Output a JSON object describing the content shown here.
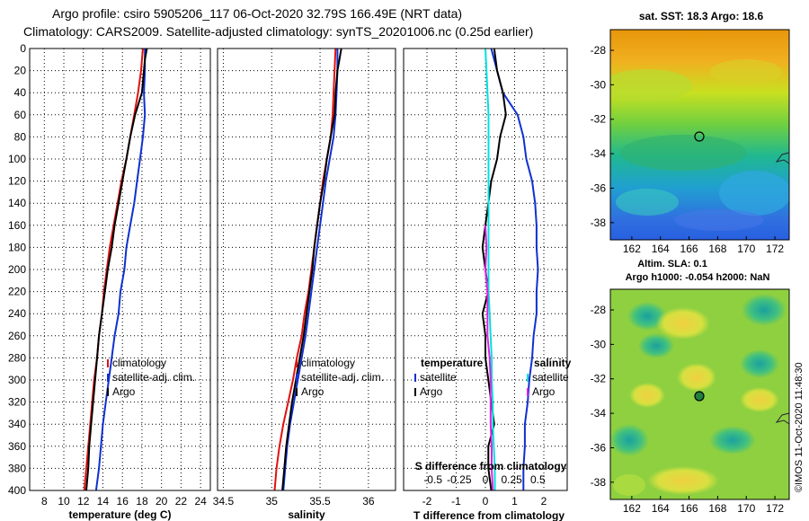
{
  "header": {
    "line1": "Argo profile: csiro 5905206_117 06-Oct-2020 32.79S 166.49E (NRT data)",
    "line2": "Climatology: CARS2009. Satellite-adjusted climatology: synTS_20201006.nc (0.25d earlier)"
  },
  "colors": {
    "climatology": "#e01010",
    "satellite": "#1030d0",
    "argo": "#000000",
    "magenta": "#e020e0",
    "cyan": "#00e0e0"
  },
  "chart_data": [
    {
      "type": "line",
      "id": "temperature",
      "xlabel": "temperature (deg C)",
      "ylabel": "",
      "xlim": [
        6.5,
        25
      ],
      "ylim": [
        400,
        0
      ],
      "xticks": [
        "8",
        "10",
        "12",
        "14",
        "16",
        "18",
        "20",
        "22",
        "24"
      ],
      "xtick_values": [
        8,
        10,
        12,
        14,
        16,
        18,
        20,
        22,
        24
      ],
      "yticks": [
        "0",
        "20",
        "40",
        "60",
        "80",
        "100",
        "120",
        "140",
        "160",
        "180",
        "200",
        "220",
        "240",
        "260",
        "280",
        "300",
        "320",
        "340",
        "360",
        "380",
        "400"
      ],
      "grid": true,
      "legend": [
        "climatology",
        "satellite-adj. clim.",
        "Argo"
      ],
      "series": [
        {
          "name": "climatology",
          "color": "#e01010",
          "depth": [
            0,
            20,
            40,
            60,
            80,
            100,
            120,
            140,
            160,
            180,
            200,
            220,
            240,
            260,
            280,
            300,
            320,
            340,
            360,
            380,
            400
          ],
          "values": [
            18.1,
            17.9,
            17.6,
            17.2,
            16.8,
            16.4,
            15.9,
            15.5,
            15.1,
            14.7,
            14.4,
            14.1,
            13.9,
            13.6,
            13.4,
            13.1,
            12.9,
            12.7,
            12.5,
            12.3,
            12.1
          ]
        },
        {
          "name": "satellite-adj. clim.",
          "color": "#1030d0",
          "depth": [
            0,
            20,
            40,
            60,
            80,
            100,
            120,
            140,
            160,
            180,
            200,
            220,
            240,
            260,
            280,
            300,
            320,
            340,
            360,
            380,
            400
          ],
          "values": [
            18.3,
            18.3,
            18.2,
            18.3,
            18.1,
            17.8,
            17.5,
            17.2,
            16.8,
            16.4,
            16.2,
            15.8,
            15.6,
            15.2,
            14.9,
            14.6,
            14.3,
            14.0,
            13.8,
            13.6,
            13.3
          ]
        },
        {
          "name": "Argo",
          "color": "#000000",
          "depth": [
            0,
            10,
            20,
            40,
            60,
            80,
            100,
            120,
            140,
            160,
            180,
            200,
            220,
            240,
            260,
            280,
            300,
            320,
            340,
            360,
            380,
            400
          ],
          "values": [
            18.5,
            18.3,
            18.2,
            18.0,
            17.3,
            16.8,
            16.4,
            16.0,
            15.6,
            15.2,
            14.9,
            14.5,
            14.2,
            13.9,
            13.6,
            13.4,
            13.2,
            13.0,
            12.8,
            12.6,
            12.5,
            12.3
          ]
        }
      ]
    },
    {
      "type": "line",
      "id": "salinity",
      "xlabel": "salinity",
      "xlim": [
        34.44,
        36.28
      ],
      "ylim": [
        400,
        0
      ],
      "xticks": [
        "34.5",
        "35",
        "35.5",
        "36"
      ],
      "xtick_values": [
        34.5,
        35,
        35.5,
        36
      ],
      "grid": true,
      "legend": [
        "climatology",
        "satellite-adj. clim.",
        "Argo"
      ],
      "series": [
        {
          "name": "climatology",
          "color": "#e01010",
          "depth": [
            0,
            20,
            40,
            60,
            80,
            100,
            120,
            140,
            160,
            180,
            200,
            220,
            240,
            260,
            280,
            300,
            320,
            340,
            360,
            380,
            400
          ],
          "values": [
            35.66,
            35.65,
            35.64,
            35.63,
            35.61,
            35.57,
            35.53,
            35.5,
            35.47,
            35.44,
            35.41,
            35.38,
            35.34,
            35.31,
            35.26,
            35.22,
            35.17,
            35.12,
            35.08,
            35.05,
            35.03
          ]
        },
        {
          "name": "satellite-adj. clim.",
          "color": "#1030d0",
          "depth": [
            0,
            20,
            40,
            60,
            80,
            100,
            120,
            140,
            160,
            180,
            200,
            220,
            240,
            260,
            280,
            300,
            320,
            340,
            360,
            380,
            400
          ],
          "values": [
            35.68,
            35.68,
            35.67,
            35.66,
            35.64,
            35.6,
            35.56,
            35.53,
            35.5,
            35.47,
            35.44,
            35.41,
            35.38,
            35.35,
            35.31,
            35.27,
            35.23,
            35.19,
            35.16,
            35.14,
            35.12
          ]
        },
        {
          "name": "Argo",
          "color": "#000000",
          "depth": [
            0,
            10,
            20,
            40,
            60,
            80,
            100,
            120,
            140,
            160,
            180,
            200,
            220,
            240,
            260,
            280,
            300,
            320,
            340,
            360,
            380,
            400
          ],
          "values": [
            35.72,
            35.7,
            35.68,
            35.66,
            35.65,
            35.61,
            35.57,
            35.54,
            35.5,
            35.47,
            35.44,
            35.42,
            35.39,
            35.36,
            35.33,
            35.29,
            35.25,
            35.21,
            35.18,
            35.15,
            35.13,
            35.11
          ]
        }
      ]
    },
    {
      "type": "line",
      "id": "difference",
      "xlabel": "T difference from climatology",
      "top_label": "S difference from climatology",
      "xlim": [
        -2.8,
        2.8
      ],
      "ylim": [
        400,
        0
      ],
      "xticks": [
        "-2",
        "-1",
        "0",
        "1",
        "2"
      ],
      "xtick_values": [
        -2,
        -1,
        0,
        1,
        2
      ],
      "top_ticks": [
        "-0.5",
        "-0.25",
        "0",
        "0.25",
        "0.5"
      ],
      "top_tick_values": [
        -0.5,
        -0.25,
        0,
        0.25,
        0.5
      ],
      "grid": true,
      "legend_headers": [
        "temperature",
        "salinity"
      ],
      "legend_t": [
        "satellite",
        "Argo"
      ],
      "legend_s": [
        "satellite",
        "Argo"
      ],
      "series": [
        {
          "name": "T satellite",
          "color": "#1030d0",
          "depth": [
            0,
            20,
            40,
            60,
            80,
            100,
            120,
            140,
            160,
            180,
            200,
            220,
            240,
            260,
            280,
            300,
            320,
            340,
            360,
            380,
            400
          ],
          "values": [
            0.2,
            0.4,
            0.6,
            1.1,
            1.3,
            1.4,
            1.6,
            1.7,
            1.75,
            1.75,
            1.8,
            1.75,
            1.75,
            1.65,
            1.6,
            1.5,
            1.45,
            1.35,
            1.35,
            1.3,
            1.3
          ]
        },
        {
          "name": "T Argo",
          "color": "#000000",
          "depth": [
            0,
            20,
            40,
            60,
            80,
            100,
            120,
            140,
            160,
            180,
            200,
            220,
            240,
            260,
            280,
            300,
            320,
            340,
            360,
            380,
            400
          ],
          "values": [
            0.3,
            0.4,
            0.6,
            0.7,
            0.5,
            0.4,
            0.2,
            0.1,
            0.0,
            -0.1,
            0.0,
            0.1,
            -0.1,
            0.0,
            0.0,
            0.1,
            0.2,
            0.3,
            0.1,
            0.1,
            0.2
          ]
        },
        {
          "name": "S satellite",
          "color": "#00e0e0",
          "depth": [
            0,
            20,
            40,
            60,
            80,
            100,
            120,
            140,
            160,
            180,
            200,
            220,
            240,
            260,
            280,
            300,
            320,
            340,
            360,
            380,
            400
          ],
          "values": [
            0.0,
            0.01,
            0.02,
            0.03,
            0.03,
            0.03,
            0.03,
            0.03,
            0.03,
            0.03,
            0.03,
            0.03,
            0.04,
            0.05,
            0.06,
            0.06,
            0.07,
            0.07,
            0.08,
            0.09,
            0.09
          ]
        },
        {
          "name": "S Argo",
          "color": "#e020e0",
          "depth": [
            160,
            180,
            200,
            220,
            240,
            260,
            280,
            300,
            320,
            340,
            360,
            380,
            400
          ],
          "values": [
            0.0,
            0.01,
            0.0,
            0.02,
            0.02,
            0.02,
            0.04,
            0.05,
            0.05,
            0.05,
            0.06,
            0.06,
            0.07
          ]
        }
      ]
    },
    {
      "type": "heatmap",
      "id": "sst-map",
      "title": "sat. SST: 18.3 Argo: 18.6",
      "xticks": [
        "162",
        "164",
        "166",
        "168",
        "170",
        "172"
      ],
      "yticks": [
        "-28",
        "-30",
        "-32",
        "-34",
        "-36",
        "-38"
      ],
      "xlim": [
        160.5,
        173
      ],
      "ylim": [
        -39,
        -26.8
      ],
      "marker": {
        "lon": 166.49,
        "lat": -32.79
      }
    },
    {
      "type": "heatmap",
      "id": "sla-map",
      "title": "Altim. SLA: 0.1",
      "subtitle": "Argo h1000: -0.054 h2000: NaN",
      "xticks": [
        "162",
        "164",
        "166",
        "168",
        "170",
        "172"
      ],
      "yticks": [
        "-28",
        "-30",
        "-32",
        "-34",
        "-36",
        "-38"
      ],
      "xlim": [
        160.5,
        173
      ],
      "ylim": [
        -39,
        -26.8
      ],
      "marker": {
        "lon": 166.49,
        "lat": -32.79
      }
    }
  ],
  "footer": {
    "credit": "©IMOS 11-Oct-2020 11:48:30"
  }
}
